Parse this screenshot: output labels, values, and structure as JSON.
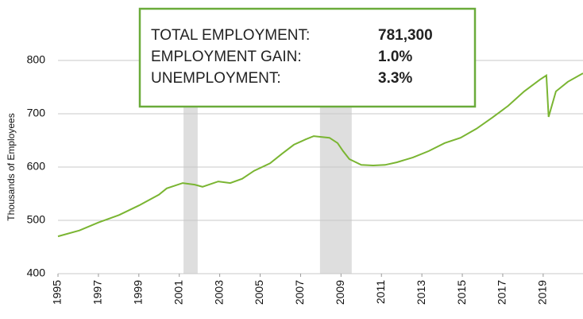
{
  "chart_data": {
    "type": "line",
    "y_axis_label": "Thousands of Employees",
    "x": [
      1995.0,
      1996.06,
      1997.0,
      1998.02,
      1999.01,
      1999.99,
      2000.38,
      2001.17,
      2001.76,
      2002.15,
      2002.93,
      2003.52,
      2004.11,
      2004.7,
      2005.49,
      2006.08,
      2006.67,
      2007.25,
      2007.65,
      2008.43,
      2008.83,
      2009.1,
      2009.41,
      2010.0,
      2010.59,
      2011.18,
      2011.77,
      2012.56,
      2013.34,
      2014.13,
      2014.91,
      2015.7,
      2016.49,
      2017.27,
      2018.06,
      2018.84,
      2019.16,
      2019.27,
      2019.63,
      2020.22,
      2020.97
    ],
    "values": [
      470,
      481,
      496,
      510,
      528,
      548,
      560,
      570,
      567,
      563,
      573,
      570,
      578,
      593,
      607,
      625,
      642,
      652,
      658,
      655,
      645,
      630,
      615,
      604,
      603,
      604,
      609,
      618,
      630,
      645,
      655,
      672,
      693,
      715,
      742,
      764,
      772,
      694,
      742,
      760,
      776
    ],
    "color": "#7ab532",
    "shaded_periods": [
      [
        2001.21,
        2001.91
      ],
      [
        2007.96,
        2009.53
      ]
    ],
    "shade_color": "#dedede",
    "xlim": [
      1995,
      2020.97
    ],
    "ylim": [
      400,
      800
    ],
    "xticks": [
      1995,
      1997,
      1999,
      2001,
      2003,
      2005,
      2007,
      2009,
      2011,
      2013,
      2015,
      2017,
      2019
    ],
    "yticks": [
      400,
      500,
      600,
      700,
      800
    ],
    "grid": true
  },
  "info_box": [
    {
      "label": "TOTAL EMPLOYMENT:",
      "value": "781,300"
    },
    {
      "label": "EMPLOYMENT GAIN:",
      "value": "1.0%"
    },
    {
      "label": "UNEMPLOYMENT:",
      "value": "3.3%"
    }
  ]
}
